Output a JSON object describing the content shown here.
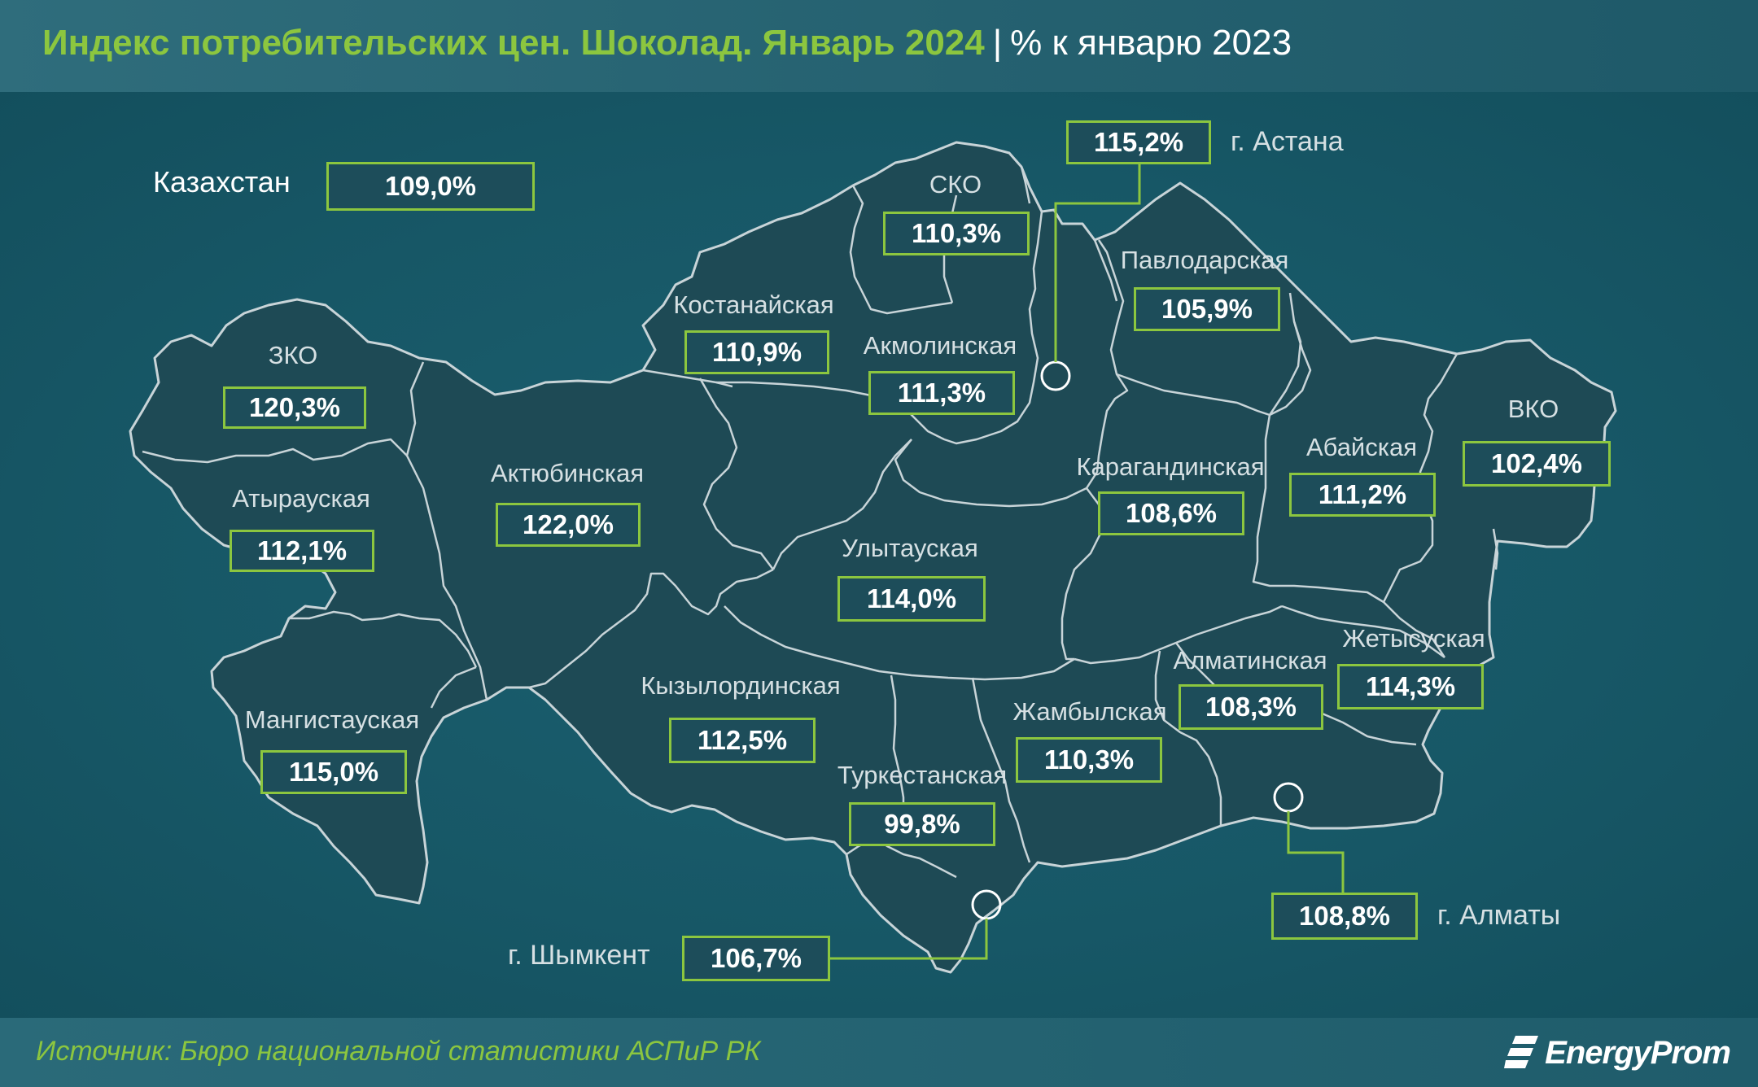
{
  "header": {
    "title": "Индекс потребительских цен. Шоколад. Январь 2024",
    "separator": "|",
    "unit": "% к январю 2023"
  },
  "country": {
    "name": "Казахстан",
    "value": "109,0%"
  },
  "regions": [
    {
      "key": "zko",
      "name": "ЗКО",
      "value": "120,3%"
    },
    {
      "key": "atyrau",
      "name": "Атырауская",
      "value": "112,1%"
    },
    {
      "key": "mangistau",
      "name": "Мангистауская",
      "value": "115,0%"
    },
    {
      "key": "aktobe",
      "name": "Актюбинская",
      "value": "122,0%"
    },
    {
      "key": "kostanay",
      "name": "Костанайская",
      "value": "110,9%"
    },
    {
      "key": "sko",
      "name": "СКО",
      "value": "110,3%"
    },
    {
      "key": "akmola",
      "name": "Акмолинская",
      "value": "111,3%"
    },
    {
      "key": "pavlodar",
      "name": "Павлодарская",
      "value": "105,9%"
    },
    {
      "key": "vko",
      "name": "ВКО",
      "value": "102,4%"
    },
    {
      "key": "abai",
      "name": "Абайская",
      "value": "111,2%"
    },
    {
      "key": "karaganda",
      "name": "Карагандинская",
      "value": "108,6%"
    },
    {
      "key": "ulytau",
      "name": "Улытауская",
      "value": "114,0%"
    },
    {
      "key": "kyzylorda",
      "name": "Кызылординская",
      "value": "112,5%"
    },
    {
      "key": "turkestan",
      "name": "Туркестанская",
      "value": "99,8%"
    },
    {
      "key": "zhambyl",
      "name": "Жамбылская",
      "value": "110,3%"
    },
    {
      "key": "almaty_reg",
      "name": "Алматинская",
      "value": "108,3%"
    },
    {
      "key": "zhetysu",
      "name": "Жетысуская",
      "value": "114,3%"
    }
  ],
  "cities": [
    {
      "key": "astana",
      "name": "г. Астана",
      "value": "115,2%"
    },
    {
      "key": "almaty",
      "name": "г. Алматы",
      "value": "108,8%"
    },
    {
      "key": "shymkent",
      "name": "г. Шымкент",
      "value": "106,7%"
    }
  ],
  "footer": {
    "source": "Источник: Бюро национальной статистики АСПиР РК",
    "logo": "EnergyProm"
  },
  "colors": {
    "accent": "#8cc63f",
    "background": "#175766",
    "land": "#1e4a55"
  }
}
